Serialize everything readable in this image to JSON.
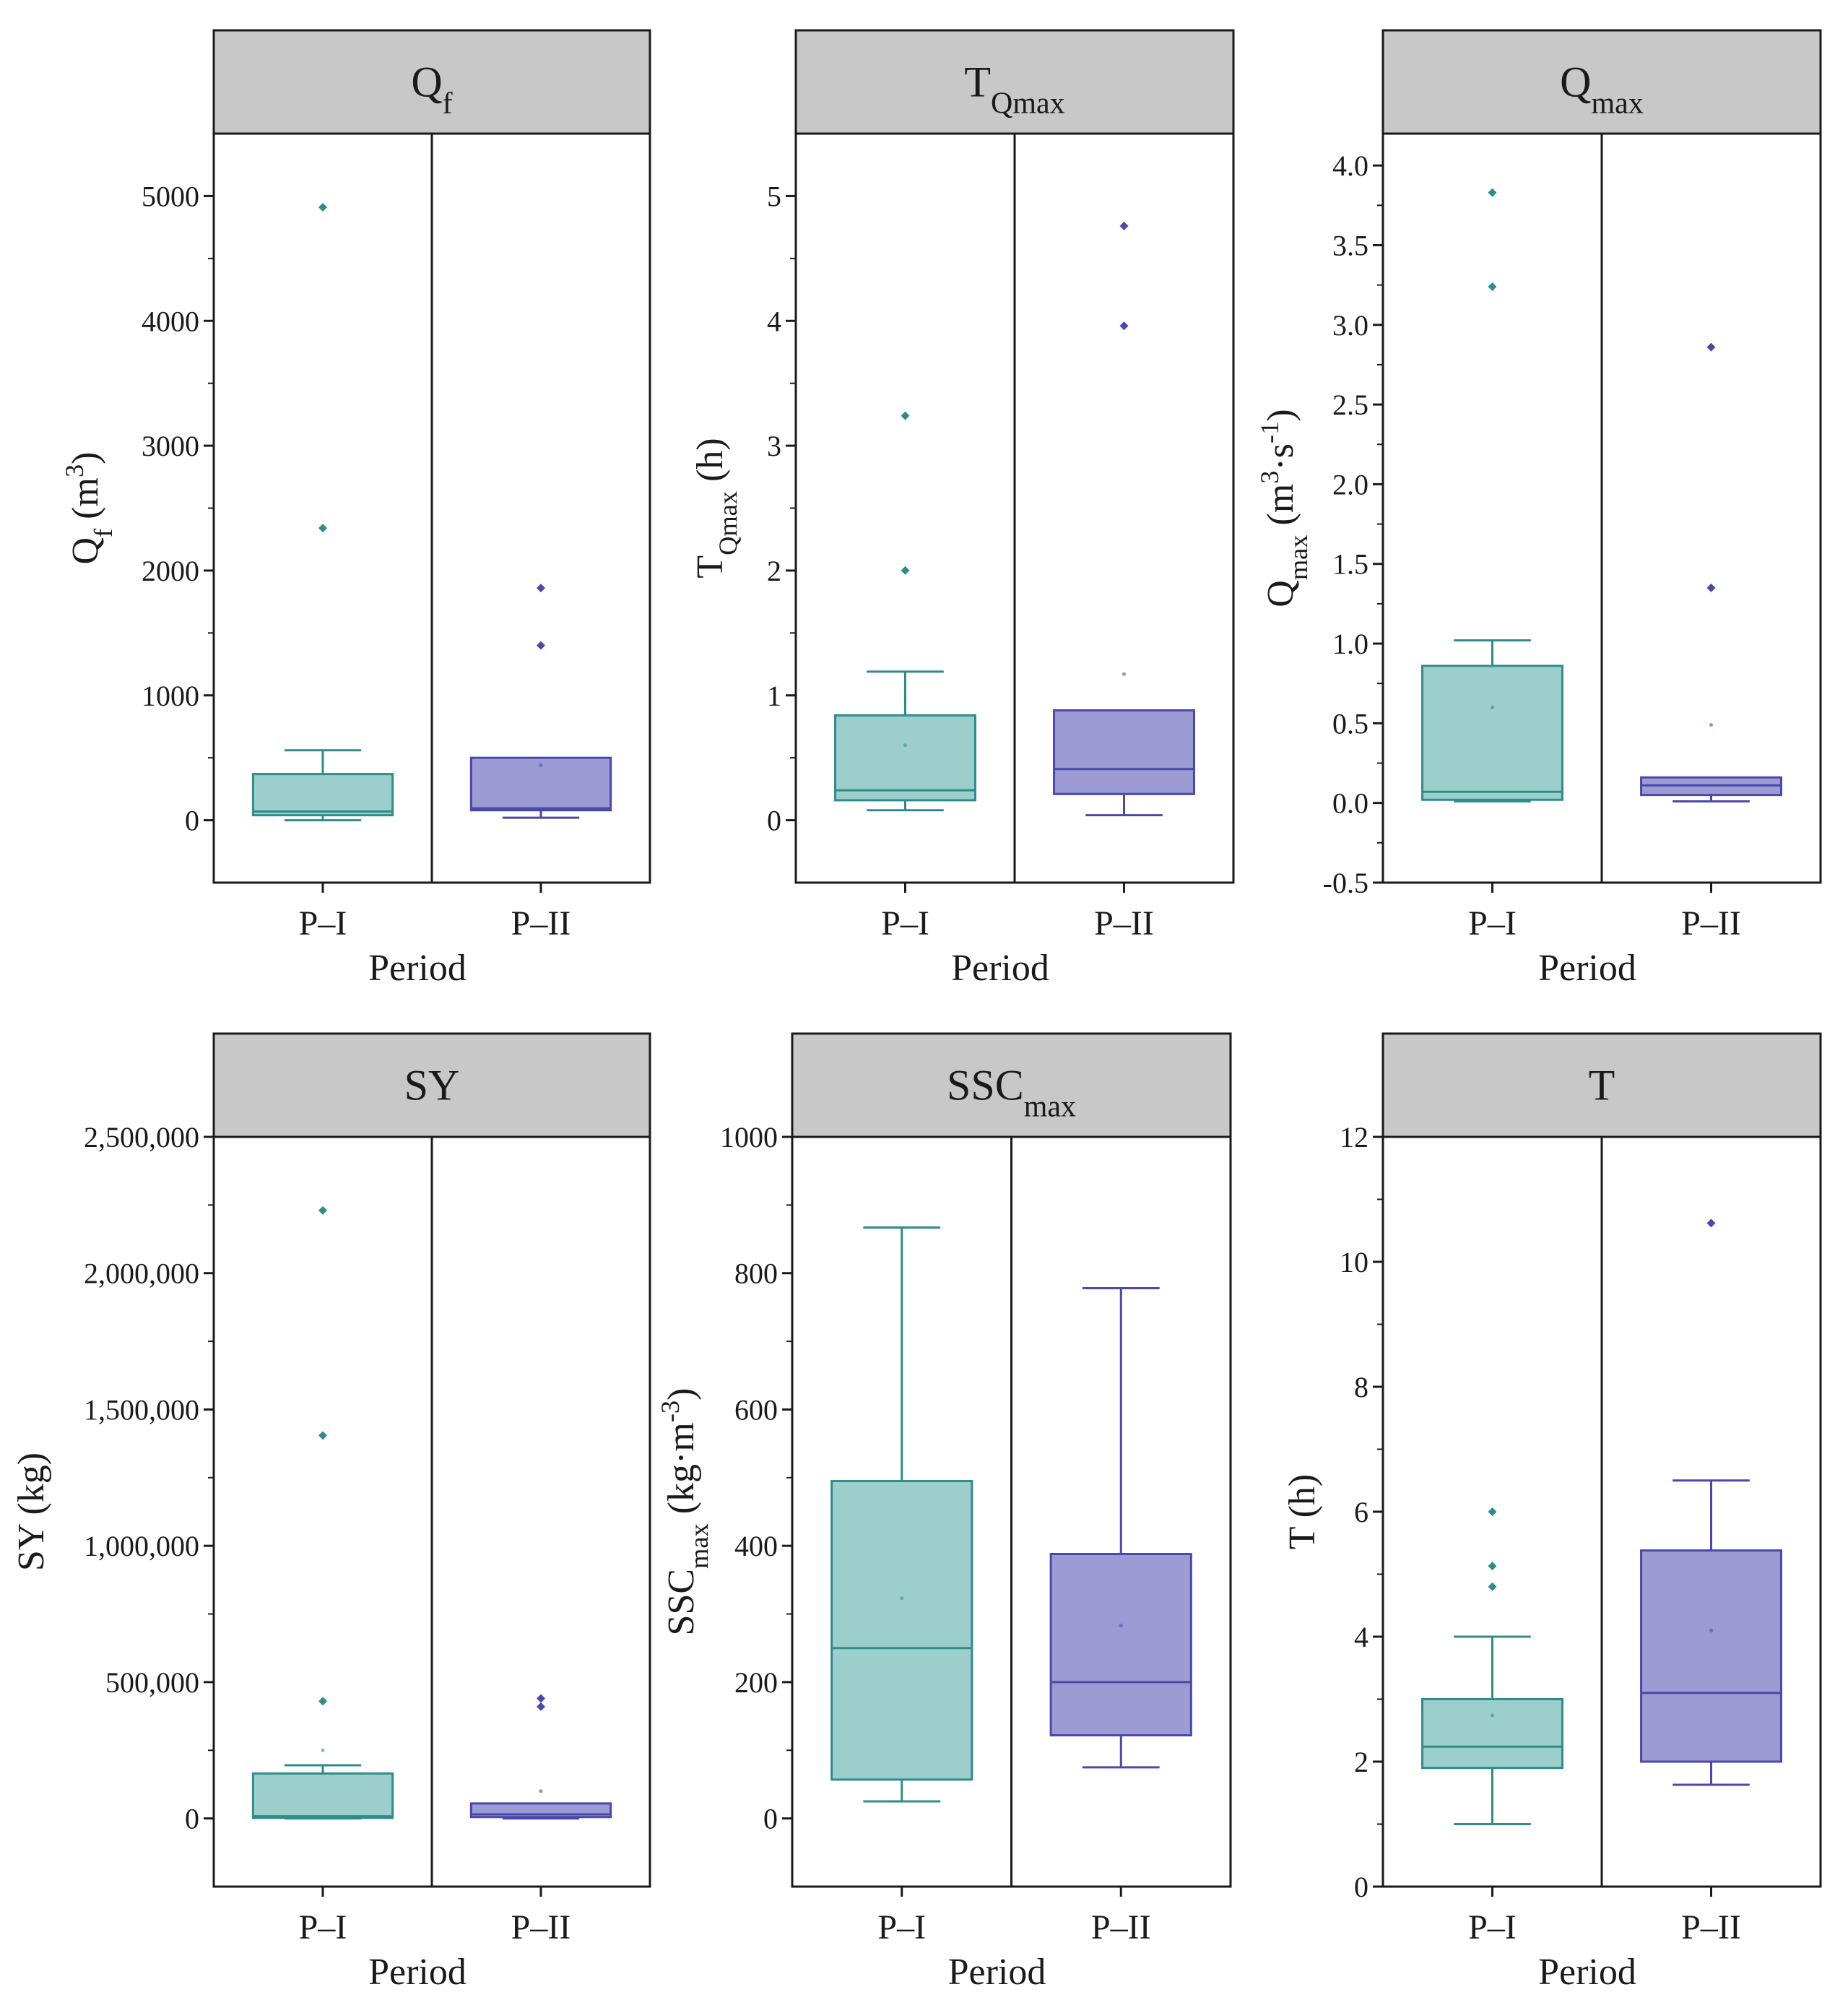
{
  "colors": {
    "P-I_fill": "#9ccfcb",
    "P-I_stroke": "#2e8c8a",
    "P-II_fill": "#9c9bd3",
    "P-II_stroke": "#4a47ad",
    "header_bg": "#c8c8c8"
  },
  "chart_data": [
    {
      "id": "qf",
      "type": "box",
      "title": {
        "base": "Q",
        "sub": "f",
        "sup": ""
      },
      "ylabel": [
        {
          "t": "Q"
        },
        {
          "t": "f",
          "s": "sub"
        },
        {
          "t": " (m"
        },
        {
          "t": "3",
          "s": "sup"
        },
        {
          "t": ")"
        }
      ],
      "xlabel": "Period",
      "categories": [
        "P–I",
        "P–II"
      ],
      "ylim": [
        -500,
        5500
      ],
      "yticks": [
        0,
        1000,
        2000,
        3000,
        4000,
        5000
      ],
      "yticklabels": [
        "0",
        "1000",
        "2000",
        "3000",
        "4000",
        "5000"
      ],
      "series": [
        {
          "name": "P–I",
          "whisker_low": 0,
          "q1": 40,
          "median": 70,
          "q3": 370,
          "whisker_high": 560,
          "mean": null,
          "outliers": [
            2340,
            4910
          ]
        },
        {
          "name": "P–II",
          "whisker_low": 20,
          "q1": 80,
          "median": 95,
          "q3": 500,
          "whisker_high": null,
          "mean": 440,
          "outliers": [
            1400,
            1860
          ]
        }
      ]
    },
    {
      "id": "tqmax",
      "type": "box",
      "title": {
        "base": "T",
        "sub": "Qmax",
        "sup": ""
      },
      "ylabel": [
        {
          "t": "T"
        },
        {
          "t": "Qmax",
          "s": "sub"
        },
        {
          "t": " (h)"
        }
      ],
      "xlabel": "Period",
      "categories": [
        "P–I",
        "P–II"
      ],
      "ylim": [
        -0.5,
        5.5
      ],
      "yticks": [
        0,
        1,
        2,
        3,
        4,
        5
      ],
      "yticklabels": [
        "0",
        "1",
        "2",
        "3",
        "4",
        "5"
      ],
      "series": [
        {
          "name": "P–I",
          "whisker_low": 0.08,
          "q1": 0.16,
          "median": 0.24,
          "q3": 0.84,
          "whisker_high": 1.19,
          "mean": 0.6,
          "outliers": [
            2.0,
            3.24
          ]
        },
        {
          "name": "P–II",
          "whisker_low": 0.04,
          "q1": 0.21,
          "median": 0.41,
          "q3": 0.88,
          "whisker_high": null,
          "mean": 1.17,
          "outliers": [
            3.96,
            4.76
          ]
        }
      ]
    },
    {
      "id": "qmax",
      "type": "box",
      "title": {
        "base": "Q",
        "sub": "max",
        "sup": ""
      },
      "ylabel": [
        {
          "t": "Q"
        },
        {
          "t": "max",
          "s": "sub"
        },
        {
          "t": " (m"
        },
        {
          "t": "3",
          "s": "sup"
        },
        {
          "t": "·s"
        },
        {
          "t": "-1",
          "s": "sup"
        },
        {
          "t": ")"
        }
      ],
      "xlabel": "Period",
      "categories": [
        "P–I",
        "P–II"
      ],
      "ylim": [
        -0.5,
        4.2
      ],
      "yticks": [
        -0.5,
        0.0,
        0.5,
        1.0,
        1.5,
        2.0,
        2.5,
        3.0,
        3.5,
        4.0
      ],
      "yticklabels": [
        "-0.5",
        "0.0",
        "0.5",
        "1.0",
        "1.5",
        "2.0",
        "2.5",
        "3.0",
        "3.5",
        "4.0"
      ],
      "series": [
        {
          "name": "P–I",
          "whisker_low": 0.01,
          "q1": 0.02,
          "median": 0.07,
          "q3": 0.86,
          "whisker_high": 1.02,
          "mean": 0.6,
          "outliers": [
            3.24,
            3.83
          ]
        },
        {
          "name": "P–II",
          "whisker_low": 0.01,
          "q1": 0.05,
          "median": 0.11,
          "q3": 0.16,
          "whisker_high": null,
          "mean": 0.49,
          "outliers": [
            1.35,
            2.86
          ]
        }
      ]
    },
    {
      "id": "sy",
      "type": "box",
      "title": {
        "base": "SY",
        "sub": "",
        "sup": ""
      },
      "ylabel": [
        {
          "t": "SY (kg)"
        }
      ],
      "xlabel": "Period",
      "categories": [
        "P–I",
        "P–II"
      ],
      "ylim": [
        -250000,
        2500000
      ],
      "yticks": [
        0,
        500000,
        1000000,
        1500000,
        2000000,
        2500000
      ],
      "yticklabels": [
        "0",
        "500,000",
        "1,000,000",
        "1,500,000",
        "2,000,000",
        "2,500,000"
      ],
      "series": [
        {
          "name": "P–I",
          "whisker_low": 0,
          "q1": 2000,
          "median": 8000,
          "q3": 165000,
          "whisker_high": 195000,
          "mean": 250000,
          "outliers": [
            430000,
            1405000,
            2230000
          ]
        },
        {
          "name": "P–II",
          "whisker_low": 0,
          "q1": 5000,
          "median": 15000,
          "q3": 55000,
          "whisker_high": null,
          "mean": 100000,
          "outliers": [
            410000,
            440000
          ]
        }
      ]
    },
    {
      "id": "sscmax",
      "type": "box",
      "title": {
        "base": "SSC",
        "sub": "max",
        "sup": ""
      },
      "ylabel": [
        {
          "t": "SSC"
        },
        {
          "t": "max",
          "s": "sub"
        },
        {
          "t": " (kg·m"
        },
        {
          "t": "-3",
          "s": "sup"
        },
        {
          "t": ")"
        }
      ],
      "xlabel": "Period",
      "categories": [
        "P–I",
        "P–II"
      ],
      "ylim": [
        -100,
        1000
      ],
      "yticks": [
        0,
        200,
        400,
        600,
        800,
        1000
      ],
      "yticklabels": [
        "0",
        "200",
        "400",
        "600",
        "800",
        "1000"
      ],
      "series": [
        {
          "name": "P–I",
          "whisker_low": 25,
          "q1": 57,
          "median": 250,
          "q3": 495,
          "whisker_high": 867,
          "mean": 323,
          "outliers": []
        },
        {
          "name": "P–II",
          "whisker_low": 75,
          "q1": 122,
          "median": 200,
          "q3": 388,
          "whisker_high": 778,
          "mean": 283,
          "outliers": []
        }
      ]
    },
    {
      "id": "t",
      "type": "box",
      "title": {
        "base": "T",
        "sub": "",
        "sup": ""
      },
      "ylabel": [
        {
          "t": "T (h)"
        }
      ],
      "xlabel": "Period",
      "categories": [
        "P–I",
        "P–II"
      ],
      "ylim": [
        0,
        12
      ],
      "yticks": [
        0,
        2,
        4,
        6,
        8,
        10,
        12
      ],
      "yticklabels": [
        "0",
        "2",
        "4",
        "6",
        "8",
        "10",
        "12"
      ],
      "series": [
        {
          "name": "P–I",
          "whisker_low": 1.0,
          "q1": 1.9,
          "median": 2.24,
          "q3": 3.0,
          "whisker_high": 4.0,
          "mean": 2.74,
          "outliers": [
            4.8,
            5.13,
            6.0
          ]
        },
        {
          "name": "P–II",
          "whisker_low": 1.63,
          "q1": 2.0,
          "median": 3.1,
          "q3": 5.38,
          "whisker_high": 6.5,
          "mean": 4.1,
          "outliers": [
            10.62
          ]
        }
      ]
    }
  ]
}
